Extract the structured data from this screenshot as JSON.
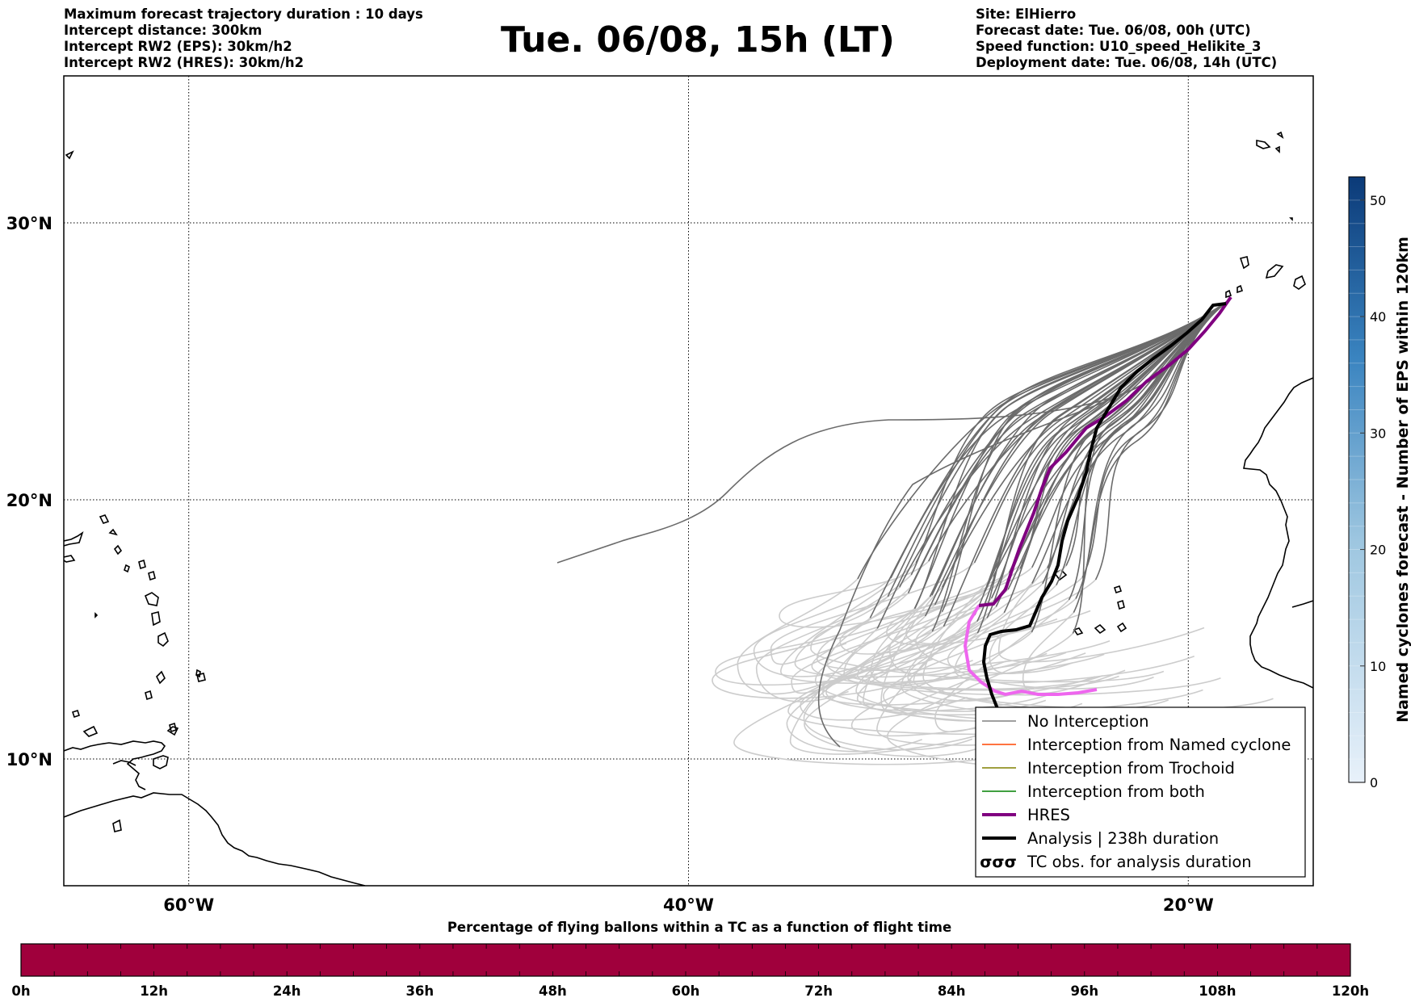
{
  "header": {
    "left_lines": [
      "Maximum forecast trajectory duration : 10 days",
      "Intercept distance: 300km",
      "Intercept RW2 (EPS):  30km/h2",
      "Intercept RW2 (HRES): 30km/h2"
    ],
    "right_lines": [
      "Site: ElHierro",
      "Forecast date: Tue. 06/08, 00h (UTC)",
      "Speed function: U10_speed_Helikite_3",
      "Deployment date: Tue. 06/08, 14h (UTC)"
    ],
    "title": "Tue. 06/08, 15h (LT)"
  },
  "map": {
    "lon_range": [
      -65,
      -15
    ],
    "lat_range": [
      5,
      34.5
    ],
    "lat_ticks": [
      {
        "value": 10,
        "label": "10°N"
      },
      {
        "value": 20,
        "label": "20°N"
      },
      {
        "value": 30,
        "label": "30°N"
      }
    ],
    "lon_ticks": [
      {
        "value": -60,
        "label": "60°W"
      },
      {
        "value": -40,
        "label": "40°W"
      },
      {
        "value": -20,
        "label": "20°W"
      }
    ],
    "grid": true,
    "colors": {
      "no_interception_dark": "#6b6b6b",
      "no_interception_light": "#cccccc",
      "hres": "#800080",
      "hres_late": "#ee66ee",
      "analysis": "#000000"
    }
  },
  "legend": {
    "placement": "lower-right",
    "items": [
      {
        "label": "No Interception",
        "color": "#808080",
        "style": "thin"
      },
      {
        "label": "Interception from Named cyclone",
        "color": "#ff4500",
        "style": "thin"
      },
      {
        "label": "Interception from Trochoid",
        "color": "#808000",
        "style": "thin"
      },
      {
        "label": "Interception from both",
        "color": "#008000",
        "style": "thin"
      },
      {
        "label": "HRES",
        "color": "#800080",
        "style": "thick"
      },
      {
        "label": "Analysis | 238h duration",
        "color": "#000000",
        "style": "thick"
      },
      {
        "label": "TC obs. for analysis duration",
        "color": "#000000",
        "style": "symbol",
        "symbol": "σσσ"
      }
    ]
  },
  "colorbar": {
    "title": "Named cyclones forecast - Number of EPS within 120km",
    "range": [
      0,
      52
    ],
    "ticks": [
      0,
      10,
      20,
      30,
      40,
      50
    ]
  },
  "bottom_bar": {
    "title": "Percentage of flying ballons within a TC as a function of flight time",
    "color": "#a0003c",
    "ticks": [
      "0h",
      "12h",
      "24h",
      "36h",
      "48h",
      "60h",
      "72h",
      "84h",
      "96h",
      "108h",
      "120h"
    ]
  }
}
